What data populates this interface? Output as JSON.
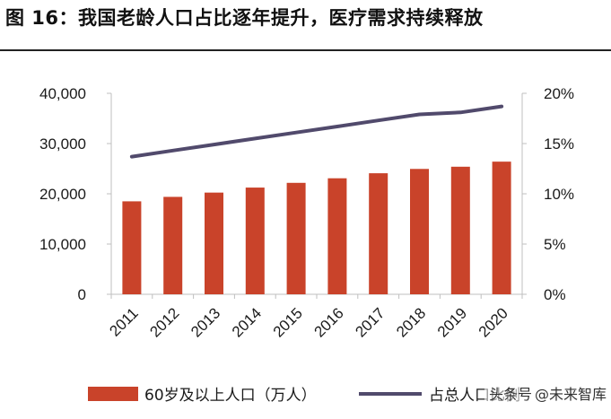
{
  "figure": {
    "title": "图 16：我国老龄人口占比逐年提升，医疗需求持续释放"
  },
  "colors": {
    "bar": "#C9432A",
    "line": "#514A6C",
    "axis": "#bfbfbf",
    "text": "#1a1a1a"
  },
  "watermark": {
    "source": "头条号",
    "brand": "@未来智库"
  },
  "chart_data": {
    "type": "bar",
    "categories": [
      "2011",
      "2012",
      "2013",
      "2014",
      "2015",
      "2016",
      "2017",
      "2018",
      "2019",
      "2020"
    ],
    "series": [
      {
        "name": "60岁及以上人口（万人）",
        "type": "bar",
        "axis": "left",
        "values": [
          18500,
          19390,
          20240,
          21240,
          22180,
          23090,
          24090,
          24950,
          25390,
          26400
        ]
      },
      {
        "name": "占总人口比例",
        "type": "line",
        "axis": "right",
        "values": [
          13.7,
          14.3,
          14.9,
          15.5,
          16.1,
          16.7,
          17.3,
          17.9,
          18.1,
          18.7
        ]
      }
    ],
    "y_left": {
      "ylim": [
        0,
        40000
      ],
      "ticks": [
        0,
        10000,
        20000,
        30000,
        40000
      ],
      "tick_labels": [
        "0",
        "10,000",
        "20,000",
        "30,000",
        "40,000"
      ]
    },
    "y_right": {
      "ylim": [
        0,
        20
      ],
      "ticks": [
        0,
        5,
        10,
        15,
        20
      ],
      "tick_labels": [
        "0%",
        "5%",
        "10%",
        "15%",
        "20%"
      ]
    },
    "grid": false,
    "legend": "bottom"
  }
}
